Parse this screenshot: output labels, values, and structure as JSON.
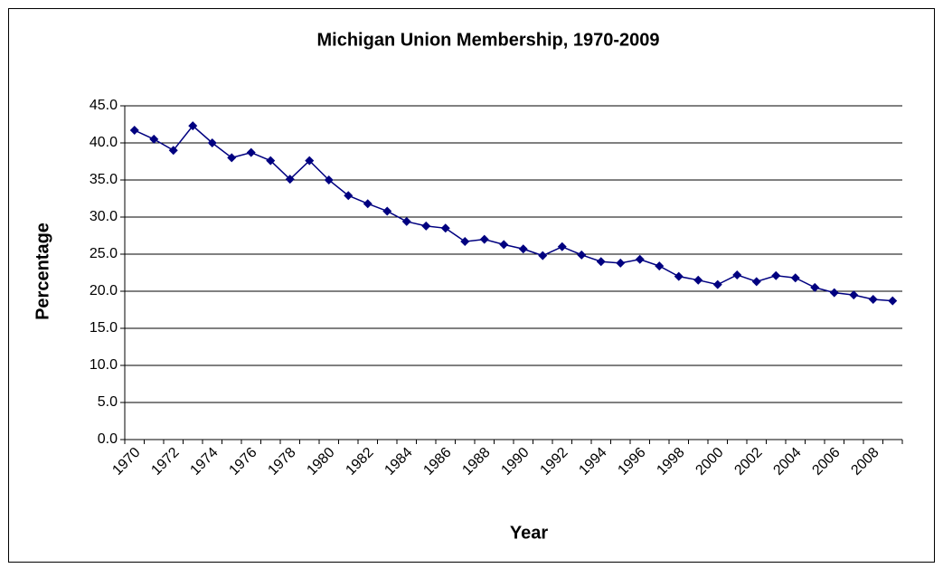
{
  "chart_data": {
    "type": "line",
    "title": "Michigan Union Membership, 1970-2009",
    "x_label": "Year",
    "y_label": "Percentage",
    "categories": [
      "1970",
      null,
      "1972",
      null,
      "1974",
      null,
      "1976",
      null,
      "1978",
      null,
      "1980",
      null,
      "1982",
      null,
      "1984",
      null,
      "1986",
      null,
      "1988",
      null,
      "1990",
      null,
      "1992",
      null,
      "1994",
      null,
      "1996",
      null,
      "1998",
      null,
      "2000",
      null,
      "2002",
      null,
      "2004",
      null,
      "2006",
      null,
      "2008",
      null
    ],
    "series": [
      {
        "name": "Percentage",
        "color": "#000080",
        "values": [
          41.7,
          40.5,
          39.0,
          42.3,
          40.0,
          38.0,
          38.7,
          37.6,
          35.1,
          37.6,
          35.0,
          32.9,
          31.8,
          30.8,
          29.4,
          28.8,
          28.5,
          26.7,
          27.0,
          26.3,
          25.7,
          24.8,
          26.0,
          24.9,
          24.0,
          23.8,
          24.3,
          23.4,
          22.0,
          21.5,
          20.9,
          22.2,
          21.3,
          22.1,
          21.8,
          20.5,
          19.8,
          19.5,
          18.9,
          18.7
        ]
      }
    ],
    "ylim": [
      0,
      45
    ],
    "yticks": [
      {
        "value": 0,
        "label": "0.0"
      },
      {
        "value": 5,
        "label": "5.0"
      },
      {
        "value": 10,
        "label": "10.0"
      },
      {
        "value": 15,
        "label": "15.0"
      },
      {
        "value": 20,
        "label": "20.0"
      },
      {
        "value": 25,
        "label": "25.0"
      },
      {
        "value": 30,
        "label": "30.0"
      },
      {
        "value": 35,
        "label": "35.0"
      },
      {
        "value": 40,
        "label": "40.0"
      },
      {
        "value": 45,
        "label": "45.0"
      }
    ],
    "grid": true,
    "legend": false
  }
}
